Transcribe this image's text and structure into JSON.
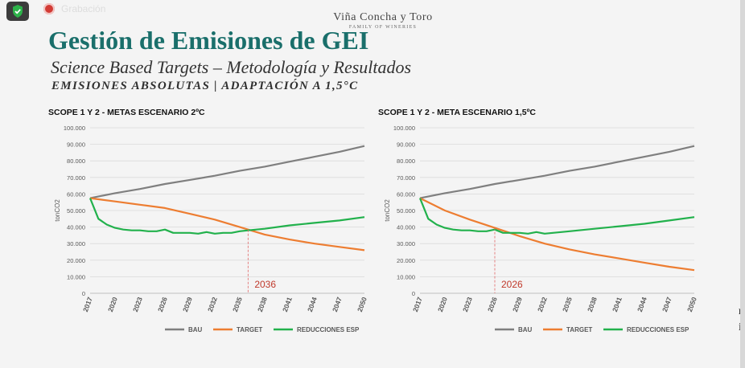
{
  "overlay": {
    "recording_label": "Grabación",
    "shield_icon": "shield-check-icon",
    "record_icon": "record-icon"
  },
  "brand": {
    "name": "Viña Concha y Toro",
    "tagline": "FAMILY OF WINERIES"
  },
  "slide": {
    "title": "Gestión de Emisiones de GEI",
    "subtitle": "Science Based Targets – Metodología y Resultados",
    "subtitle2": "EMISIONES ABSOLUTAS | ADAPTACIÓN A 1,5°C"
  },
  "edge_glyphs": [
    "r",
    "i"
  ],
  "colors": {
    "title": "#1a6f6b",
    "bau": "#7f7f7f",
    "target": "#ed7d31",
    "reducciones": "#22b14c",
    "marker": "#e06666"
  },
  "chart_data": [
    {
      "type": "line",
      "title": "SCOPE 1 Y 2 - METAS ESCENARIO 2ºC",
      "ylabel": "tonCO2",
      "xlabel": "",
      "ylim": [
        0,
        100000
      ],
      "yticks": [
        0,
        10000,
        20000,
        30000,
        40000,
        50000,
        60000,
        70000,
        80000,
        90000,
        100000
      ],
      "ytick_labels": [
        "0",
        "10.000",
        "20.000",
        "30.000",
        "40.000",
        "50.000",
        "60.000",
        "70.000",
        "80.000",
        "90.000",
        "100.000"
      ],
      "xlim": [
        2017,
        2050
      ],
      "xticks": [
        2017,
        2020,
        2023,
        2026,
        2029,
        2032,
        2035,
        2038,
        2041,
        2044,
        2047,
        2050
      ],
      "grid": true,
      "legend": [
        "BAU",
        "TARGET",
        "REDUCCIONES ESP"
      ],
      "legend_position": "bottom",
      "marker": {
        "year": 2036,
        "label": "2036"
      },
      "series": [
        {
          "name": "BAU",
          "x": [
            2017,
            2020,
            2023,
            2026,
            2029,
            2032,
            2035,
            2038,
            2041,
            2044,
            2047,
            2050
          ],
          "values": [
            57500,
            60500,
            63000,
            66000,
            68500,
            71000,
            74000,
            76500,
            79500,
            82500,
            85500,
            89000
          ]
        },
        {
          "name": "TARGET",
          "x": [
            2017,
            2020,
            2023,
            2026,
            2029,
            2032,
            2035,
            2038,
            2041,
            2044,
            2047,
            2050
          ],
          "values": [
            57500,
            55500,
            53500,
            51500,
            48000,
            44500,
            40000,
            35500,
            32500,
            30000,
            28000,
            26000
          ]
        },
        {
          "name": "REDUCCIONES ESP",
          "x": [
            2017,
            2018,
            2019,
            2020,
            2021,
            2022,
            2023,
            2024,
            2025,
            2026,
            2027,
            2028,
            2029,
            2030,
            2031,
            2032,
            2033,
            2034,
            2035,
            2036,
            2038,
            2041,
            2044,
            2047,
            2050
          ],
          "values": [
            57500,
            45000,
            41500,
            39500,
            38500,
            38000,
            38000,
            37500,
            37500,
            38500,
            36500,
            36500,
            36500,
            36000,
            37000,
            36000,
            36500,
            36500,
            37500,
            38000,
            39000,
            41000,
            42500,
            44000,
            46000
          ]
        }
      ]
    },
    {
      "type": "line",
      "title": "SCOPE 1 Y 2 - META ESCENARIO 1,5ºC",
      "ylabel": "tonCO2",
      "xlabel": "",
      "ylim": [
        0,
        100000
      ],
      "yticks": [
        0,
        10000,
        20000,
        30000,
        40000,
        50000,
        60000,
        70000,
        80000,
        90000,
        100000
      ],
      "ytick_labels": [
        "0",
        "10.000",
        "20.000",
        "30.000",
        "40.000",
        "50.000",
        "60.000",
        "70.000",
        "80.000",
        "90.000",
        "100.000"
      ],
      "xlim": [
        2017,
        2050
      ],
      "xticks": [
        2017,
        2020,
        2023,
        2026,
        2029,
        2032,
        2035,
        2038,
        2041,
        2044,
        2047,
        2050
      ],
      "grid": true,
      "legend": [
        "BAU",
        "TARGET",
        "REDUCCIONES ESP"
      ],
      "legend_position": "bottom",
      "marker": {
        "year": 2026,
        "label": "2026"
      },
      "series": [
        {
          "name": "BAU",
          "x": [
            2017,
            2020,
            2023,
            2026,
            2029,
            2032,
            2035,
            2038,
            2041,
            2044,
            2047,
            2050
          ],
          "values": [
            57500,
            60500,
            63000,
            66000,
            68500,
            71000,
            74000,
            76500,
            79500,
            82500,
            85500,
            89000
          ]
        },
        {
          "name": "TARGET",
          "x": [
            2017,
            2020,
            2023,
            2026,
            2029,
            2032,
            2035,
            2038,
            2041,
            2044,
            2047,
            2050
          ],
          "values": [
            57500,
            50000,
            44500,
            39500,
            34500,
            30000,
            26500,
            23500,
            21000,
            18500,
            16000,
            14000
          ]
        },
        {
          "name": "REDUCCIONES ESP",
          "x": [
            2017,
            2018,
            2019,
            2020,
            2021,
            2022,
            2023,
            2024,
            2025,
            2026,
            2027,
            2028,
            2029,
            2030,
            2031,
            2032,
            2033,
            2034,
            2035,
            2038,
            2041,
            2044,
            2047,
            2050
          ],
          "values": [
            57500,
            45000,
            41500,
            39500,
            38500,
            38000,
            38000,
            37500,
            37500,
            38500,
            36500,
            36500,
            36500,
            36000,
            37000,
            36000,
            36500,
            37000,
            37500,
            39000,
            40500,
            42000,
            44000,
            46000
          ]
        }
      ]
    }
  ]
}
